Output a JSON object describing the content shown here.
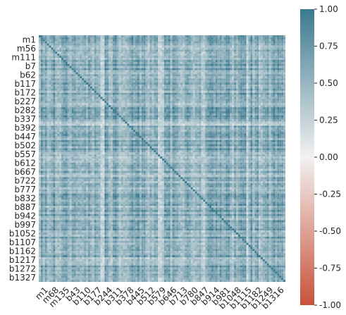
{
  "chart_data": {
    "type": "heatmap",
    "title": "",
    "xlabel": "",
    "ylabel": "",
    "row_labels": [
      "m1",
      "m56",
      "m111",
      "b7",
      "b62",
      "b117",
      "b172",
      "b227",
      "b282",
      "b337",
      "b392",
      "b447",
      "b502",
      "b557",
      "b612",
      "b667",
      "b722",
      "b777",
      "b832",
      "b887",
      "b942",
      "b997",
      "b1052",
      "b1107",
      "b1162",
      "b1217",
      "b1272",
      "b1327"
    ],
    "col_labels": [
      "m1",
      "m68",
      "m135",
      "b43",
      "b110",
      "b177",
      "b244",
      "b311",
      "b378",
      "b445",
      "b512",
      "b579",
      "b646",
      "b713",
      "b780",
      "b847",
      "b914",
      "b981",
      "b1048",
      "b1115",
      "b1182",
      "b1249",
      "b1316"
    ],
    "value_range": [
      -1.0,
      1.0
    ],
    "colorbar": {
      "ticks": [
        "1.00",
        "0.75",
        "0.50",
        "0.25",
        "0.00",
        "-0.25",
        "-0.50",
        "-0.75",
        "-1.00"
      ],
      "values": [
        1.0,
        0.75,
        0.5,
        0.25,
        0.0,
        -0.25,
        -0.5,
        -0.75,
        -1.0
      ],
      "low_color": "#c8523a",
      "mid_color": "#f2f1f1",
      "high_color": "#3c7a8f"
    },
    "grid": false,
    "legend": "colorbar-right"
  }
}
